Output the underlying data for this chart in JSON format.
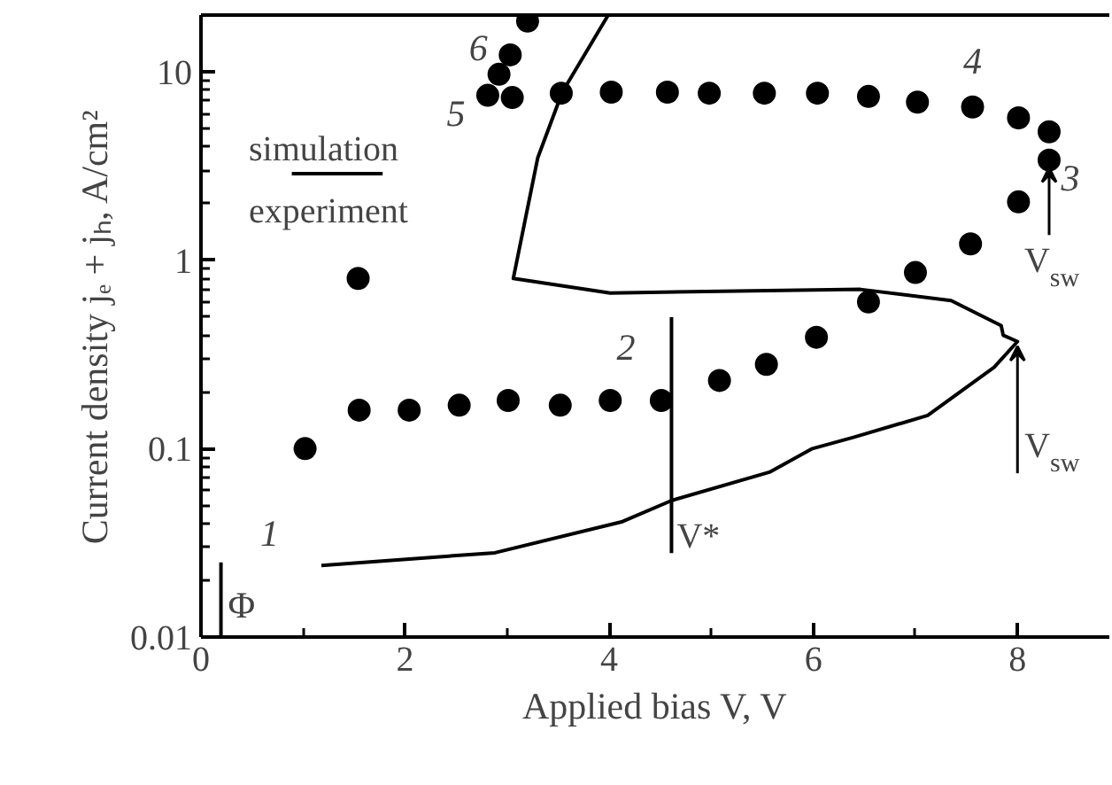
{
  "chart_data": {
    "type": "scatter",
    "xlabel": "Applied bias V, V",
    "ylabel": "Current density jₑ + jₕ, A/cm²",
    "xlim": [
      0,
      8.9
    ],
    "xticks": [
      0,
      2,
      4,
      6,
      8
    ],
    "ylim": [
      0.01,
      20
    ],
    "yticks": [
      0.01,
      0.1,
      1,
      10
    ],
    "log": "y",
    "grid": false,
    "legend": "left",
    "series": [
      {
        "name": "simulation",
        "type": "line",
        "marker": "none",
        "color": "#000000",
        "line_style": "solid",
        "x": [
          1.18,
          2.88,
          4.13,
          4.61,
          5.57,
          5.99,
          6.4,
          7.12,
          7.77,
          8.0,
          7.86,
          7.84,
          7.35,
          6.46,
          4.01,
          3.06,
          3.3,
          3.54,
          3.99
        ],
        "values": [
          0.024,
          0.028,
          0.041,
          0.053,
          0.075,
          0.1,
          0.115,
          0.15,
          0.27,
          0.37,
          0.4,
          0.45,
          0.61,
          0.7,
          0.67,
          0.8,
          3.5,
          7.8,
          20
        ]
      },
      {
        "name": "experiment",
        "marker": "circle",
        "color": "#000000",
        "x": [
          1.02,
          1.55,
          2.04,
          2.53,
          3.01,
          3.52,
          4.01,
          4.51,
          5.08,
          5.54,
          6.03,
          6.54,
          7.0,
          7.54,
          8.01,
          8.31,
          8.31,
          8.01,
          7.56,
          7.02,
          6.54,
          6.04,
          5.52,
          4.98,
          4.57,
          4.02,
          3.53,
          3.05,
          2.81,
          2.92,
          3.03,
          3.2,
          1.54
        ],
        "values": [
          0.1,
          0.16,
          0.16,
          0.17,
          0.18,
          0.17,
          0.18,
          0.18,
          0.23,
          0.28,
          0.39,
          0.6,
          0.86,
          1.22,
          2.04,
          3.4,
          4.8,
          5.7,
          6.5,
          6.9,
          7.4,
          7.7,
          7.7,
          7.7,
          7.8,
          7.8,
          7.7,
          7.3,
          7.5,
          9.7,
          12.3,
          18.6,
          0.8
        ]
      }
    ],
    "annotations": [
      {
        "text": "1",
        "x": 1.02,
        "y": 0.1
      },
      {
        "text": "2",
        "x": 4.51,
        "y": 0.18
      },
      {
        "text": "3",
        "x": 8.31,
        "y": 3.4
      },
      {
        "text": "4",
        "x": 7.56,
        "y": 6.5
      },
      {
        "text": "5",
        "x": 2.81,
        "y": 7.5
      },
      {
        "text": "6",
        "x": 3.03,
        "y": 12.3
      },
      "Φ",
      {
        "text": "V*",
        "x": 4.61,
        "y": 0.053
      },
      {
        "text": "V$_{sw}$",
        "x": 8.31,
        "y": 3.4
      },
      {
        "text": "V$_{sw}$",
        "x": 8.0,
        "y": 0.37
      }
    ]
  }
}
